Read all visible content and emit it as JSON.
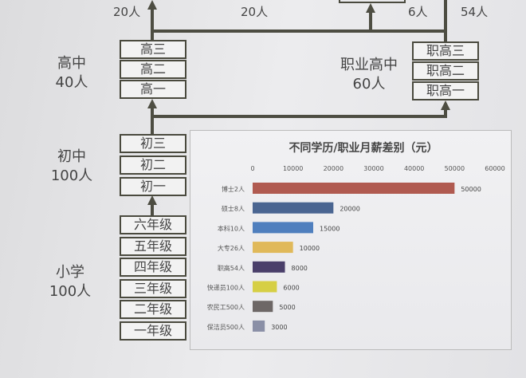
{
  "top_counts": [
    "20人",
    "20人",
    "6人",
    "54人"
  ],
  "high_school": {
    "label": "高中",
    "count": "40人",
    "grades": [
      "高三",
      "高二",
      "高一"
    ]
  },
  "vocational": {
    "label": "职业高中",
    "count": "60人",
    "grades": [
      "职高三",
      "职高二",
      "职高一"
    ]
  },
  "middle_school": {
    "label": "初中",
    "count": "100人",
    "grades": [
      "初三",
      "初二",
      "初一"
    ]
  },
  "primary_school": {
    "label": "小学",
    "count": "100人",
    "grades": [
      "六年级",
      "五年级",
      "四年级",
      "三年级",
      "二年级",
      "一年级"
    ]
  },
  "chart_data": {
    "type": "bar",
    "orientation": "horizontal",
    "title": "不同学历/职业月薪差别（元）",
    "categories": [
      "博士2人",
      "硕士8人",
      "本科10人",
      "大专26人",
      "职高54人",
      "快递员100人",
      "农民工500人",
      "保洁员500人"
    ],
    "values": [
      50000,
      20000,
      15000,
      10000,
      8000,
      6000,
      5000,
      3000
    ],
    "data_labels": [
      "50000",
      "20000",
      "15000",
      "10000",
      "8000",
      "6000",
      "5000",
      "3000"
    ],
    "xlim": [
      0,
      60000
    ],
    "x_ticks": [
      "0",
      "10000",
      "20000",
      "30000",
      "40000",
      "50000",
      "60000"
    ],
    "axis_position": "top",
    "grid": false,
    "colors": [
      "#b05a50",
      "#4a6591",
      "#4f7fbe",
      "#e0b95a",
      "#4a3f6a",
      "#d6cf45",
      "#6d6766",
      "#8a8fa6"
    ]
  }
}
